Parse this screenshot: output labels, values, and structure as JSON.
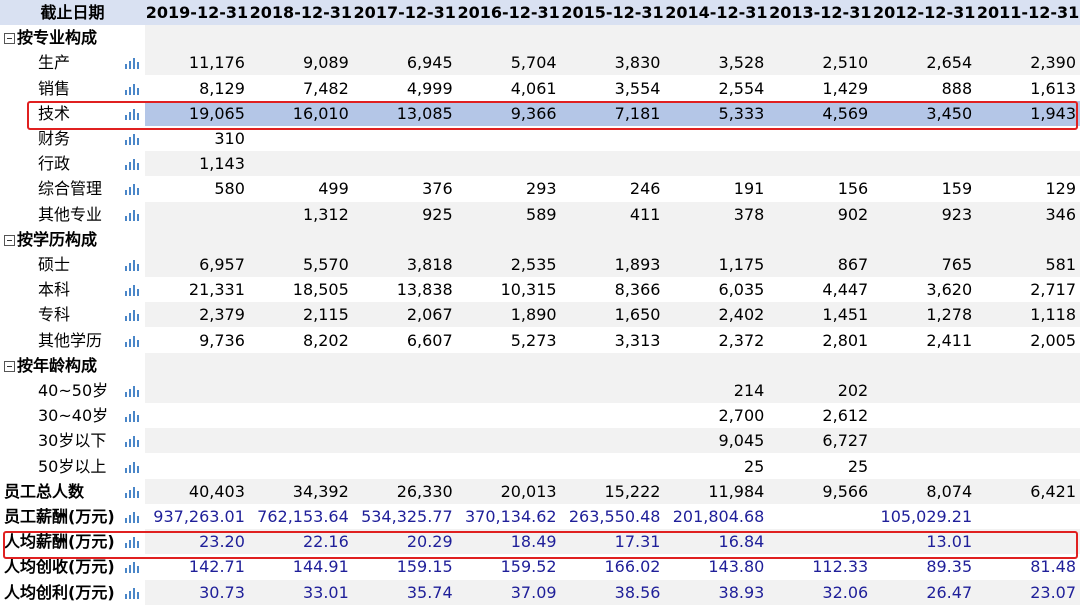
{
  "header": {
    "label": "截止日期",
    "dates": [
      "2019-12-31",
      "2018-12-31",
      "2017-12-31",
      "2016-12-31",
      "2015-12-31",
      "2014-12-31",
      "2013-12-31",
      "2012-12-31",
      "2011-12-31"
    ]
  },
  "rows": [
    {
      "kind": "section",
      "label": "按专业构成",
      "values": [
        "",
        "",
        "",
        "",
        "",
        "",
        "",
        "",
        ""
      ]
    },
    {
      "kind": "sub",
      "label": "生产",
      "values": [
        "11,176",
        "9,089",
        "6,945",
        "5,704",
        "3,830",
        "3,528",
        "2,510",
        "2,654",
        "2,390"
      ]
    },
    {
      "kind": "sub",
      "label": "销售",
      "values": [
        "8,129",
        "7,482",
        "4,999",
        "4,061",
        "3,554",
        "2,554",
        "1,429",
        "888",
        "1,613"
      ]
    },
    {
      "kind": "sub",
      "label": "技术",
      "selected": true,
      "values": [
        "19,065",
        "16,010",
        "13,085",
        "9,366",
        "7,181",
        "5,333",
        "4,569",
        "3,450",
        "1,943"
      ]
    },
    {
      "kind": "sub",
      "label": "财务",
      "values": [
        "310",
        "",
        "",
        "",
        "",
        "",
        "",
        "",
        ""
      ]
    },
    {
      "kind": "sub",
      "label": "行政",
      "values": [
        "1,143",
        "",
        "",
        "",
        "",
        "",
        "",
        "",
        ""
      ]
    },
    {
      "kind": "sub",
      "label": "综合管理",
      "values": [
        "580",
        "499",
        "376",
        "293",
        "246",
        "191",
        "156",
        "159",
        "129"
      ]
    },
    {
      "kind": "sub",
      "label": "其他专业",
      "values": [
        "",
        "1,312",
        "925",
        "589",
        "411",
        "378",
        "902",
        "923",
        "346"
      ]
    },
    {
      "kind": "section",
      "label": "按学历构成",
      "values": [
        "",
        "",
        "",
        "",
        "",
        "",
        "",
        "",
        ""
      ]
    },
    {
      "kind": "sub",
      "label": "硕士",
      "values": [
        "6,957",
        "5,570",
        "3,818",
        "2,535",
        "1,893",
        "1,175",
        "867",
        "765",
        "581"
      ]
    },
    {
      "kind": "sub",
      "label": "本科",
      "values": [
        "21,331",
        "18,505",
        "13,838",
        "10,315",
        "8,366",
        "6,035",
        "4,447",
        "3,620",
        "2,717"
      ]
    },
    {
      "kind": "sub",
      "label": "专科",
      "values": [
        "2,379",
        "2,115",
        "2,067",
        "1,890",
        "1,650",
        "2,402",
        "1,451",
        "1,278",
        "1,118"
      ]
    },
    {
      "kind": "sub",
      "label": "其他学历",
      "values": [
        "9,736",
        "8,202",
        "6,607",
        "5,273",
        "3,313",
        "2,372",
        "2,801",
        "2,411",
        "2,005"
      ]
    },
    {
      "kind": "section",
      "label": "按年龄构成",
      "values": [
        "",
        "",
        "",
        "",
        "",
        "",
        "",
        "",
        ""
      ]
    },
    {
      "kind": "sub",
      "label": "40~50岁",
      "values": [
        "",
        "",
        "",
        "",
        "",
        "214",
        "202",
        "",
        ""
      ]
    },
    {
      "kind": "sub",
      "label": "30~40岁",
      "values": [
        "",
        "",
        "",
        "",
        "",
        "2,700",
        "2,612",
        "",
        ""
      ]
    },
    {
      "kind": "sub",
      "label": "30岁以下",
      "values": [
        "",
        "",
        "",
        "",
        "",
        "9,045",
        "6,727",
        "",
        ""
      ]
    },
    {
      "kind": "sub",
      "label": "50岁以上",
      "values": [
        "",
        "",
        "",
        "",
        "",
        "25",
        "25",
        "",
        ""
      ]
    },
    {
      "kind": "top",
      "label": "员工总人数",
      "values": [
        "40,403",
        "34,392",
        "26,330",
        "20,013",
        "15,222",
        "11,984",
        "9,566",
        "8,074",
        "6,421"
      ]
    },
    {
      "kind": "top",
      "label": "员工薪酬(万元)",
      "blue": true,
      "values": [
        "937,263.01",
        "762,153.64",
        "534,325.77",
        "370,134.62",
        "263,550.48",
        "201,804.68",
        "",
        "105,029.21",
        ""
      ]
    },
    {
      "kind": "top",
      "label": "人均薪酬(万元)",
      "blue": true,
      "values": [
        "23.20",
        "22.16",
        "20.29",
        "18.49",
        "17.31",
        "16.84",
        "",
        "13.01",
        ""
      ]
    },
    {
      "kind": "top",
      "label": "人均创收(万元)",
      "blue": true,
      "values": [
        "142.71",
        "144.91",
        "159.15",
        "159.52",
        "166.02",
        "143.80",
        "112.33",
        "89.35",
        "81.48"
      ]
    },
    {
      "kind": "top",
      "label": "人均创利(万元)",
      "blue": true,
      "values": [
        "30.73",
        "33.01",
        "35.74",
        "37.09",
        "38.56",
        "38.93",
        "32.06",
        "26.47",
        "23.07"
      ]
    }
  ],
  "colors": {
    "accent_blue": "#4a86c8",
    "highlight_red": "#e02020",
    "selected_row": "#b4c6e7",
    "header_bg": "#d9e1f2"
  },
  "icons": {
    "row_chart": "bar-chart-icon",
    "section_toggle": "collapse-toggle-icon"
  }
}
